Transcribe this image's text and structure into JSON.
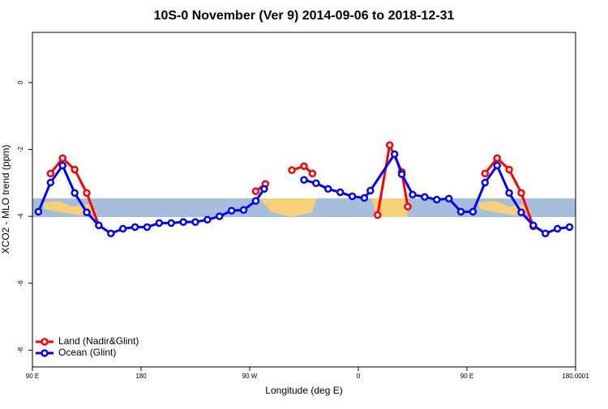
{
  "chart_data": {
    "type": "line",
    "title": "10S-0 November (Ver 9)   2014-09-06 to 2018-12-31",
    "x_label": "Longitude (deg E)",
    "y_label": "XCO2 - MLO trend (ppm)",
    "xlim": [
      90,
      540
    ],
    "xticks": [
      {
        "value": 90,
        "label": "90 E"
      },
      180,
      {
        "value": 270,
        "label": "90 W"
      },
      {
        "value": 360,
        "label": "0"
      },
      {
        "value": 450,
        "label": "90 E"
      },
      180.0001
    ],
    "ylim": [
      -8.5,
      1.5
    ],
    "yticks": [
      -8,
      -6,
      -4,
      -2,
      0
    ],
    "legend": "bottom-left",
    "series": [
      {
        "name": "Land (Nadir&Glint)",
        "color": "#ff0000",
        "x": [
          105,
          115,
          125,
          135,
          145,
          200,
          275,
          283,
          295,
          305,
          315,
          322,
          350,
          376,
          386,
          396,
          401,
          430,
          465,
          475,
          485,
          495,
          505
        ],
        "values": [
          -2.72,
          -2.26,
          -2.6,
          -3.3,
          -4.27,
          null,
          -3.25,
          -3.03,
          null,
          -2.62,
          -2.5,
          -2.72,
          null,
          -3.96,
          -1.87,
          -2.67,
          -3.71,
          null,
          -2.72,
          -2.26,
          -2.6,
          -3.3,
          -4.3
        ]
      },
      {
        "name": "Ocean (Glint)",
        "color": "#0000ff",
        "x": [
          95,
          105,
          115,
          125,
          135,
          145,
          155,
          165,
          175,
          185,
          195,
          205,
          215,
          225,
          235,
          245,
          255,
          265,
          275,
          282,
          300,
          315,
          325,
          335,
          345,
          355,
          365,
          370,
          390,
          396,
          405,
          415,
          425,
          435,
          445,
          455,
          465,
          475,
          485,
          495,
          505,
          515,
          525,
          535
        ],
        "values": [
          -3.86,
          -2.99,
          -2.48,
          -3.3,
          -3.88,
          -4.27,
          -4.51,
          -4.37,
          -4.32,
          -4.32,
          -4.2,
          -4.2,
          -4.17,
          -4.17,
          -4.1,
          -4.0,
          -3.83,
          -3.81,
          -3.54,
          -3.18,
          null,
          -2.91,
          -3.01,
          -3.18,
          -3.28,
          -3.4,
          -3.45,
          -3.23,
          -2.14,
          -2.74,
          -3.35,
          -3.42,
          -3.5,
          -3.47,
          -3.86,
          -3.86,
          -2.99,
          -2.48,
          -3.3,
          -3.88,
          -4.27,
          -4.51,
          -4.37,
          -4.32
        ]
      }
    ]
  }
}
